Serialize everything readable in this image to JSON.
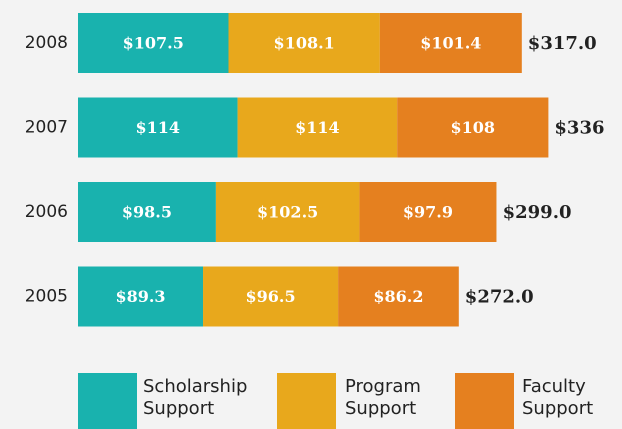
{
  "chart_data": {
    "type": "bar",
    "orientation": "horizontal",
    "stacked": true,
    "categories": [
      "2008",
      "2007",
      "2006",
      "2005"
    ],
    "series": [
      {
        "name": "Scholarship Support",
        "color": "#19b2ae",
        "values": [
          107.5,
          114,
          98.5,
          89.3
        ],
        "value_labels": [
          "$107.5",
          "$114",
          "$98.5",
          "$89.3"
        ]
      },
      {
        "name": "Program Support",
        "color": "#e8a81c",
        "values": [
          108.1,
          114,
          102.5,
          96.5
        ],
        "value_labels": [
          "$108.1",
          "$114",
          "$102.5",
          "$96.5"
        ]
      },
      {
        "name": "Faculty Support",
        "color": "#e5801f",
        "values": [
          101.4,
          108,
          97.9,
          86.2
        ],
        "value_labels": [
          "$101.4",
          "$108",
          "$97.9",
          "$86.2"
        ]
      }
    ],
    "totals": [
      317.0,
      336,
      299.0,
      272.0
    ],
    "total_labels": [
      "$317.0",
      "$336",
      "$299.0",
      "$272.0"
    ]
  }
}
